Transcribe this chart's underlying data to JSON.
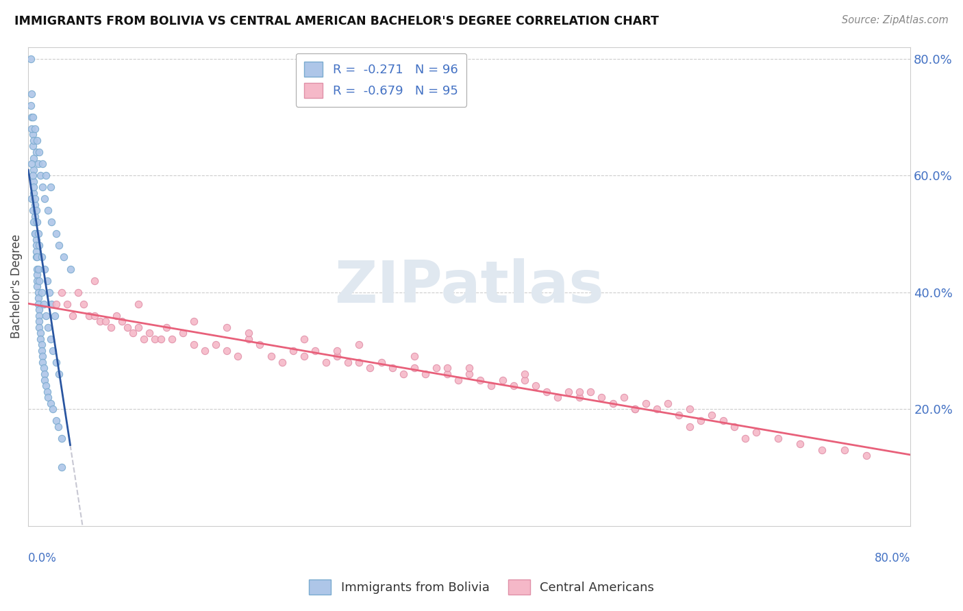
{
  "title": "IMMIGRANTS FROM BOLIVIA VS CENTRAL AMERICAN BACHELOR'S DEGREE CORRELATION CHART",
  "source": "Source: ZipAtlas.com",
  "ylabel": "Bachelor's Degree",
  "legend_label1": "Immigrants from Bolivia",
  "legend_label2": "Central Americans",
  "R1": -0.271,
  "N1": 96,
  "R2": -0.679,
  "N2": 95,
  "color_bolivia": "#aec6e8",
  "color_central": "#f5b8c8",
  "color_bolivia_line": "#2955a0",
  "color_central_line": "#e8607a",
  "color_text_blue": "#4472c4",
  "xlim": [
    0.0,
    0.8
  ],
  "ylim": [
    0.0,
    0.82
  ],
  "bolivia_x": [
    0.002,
    0.003,
    0.003,
    0.004,
    0.004,
    0.005,
    0.005,
    0.005,
    0.005,
    0.006,
    0.006,
    0.006,
    0.006,
    0.007,
    0.007,
    0.007,
    0.008,
    0.008,
    0.008,
    0.008,
    0.009,
    0.009,
    0.009,
    0.01,
    0.01,
    0.01,
    0.01,
    0.011,
    0.011,
    0.012,
    0.012,
    0.013,
    0.013,
    0.014,
    0.015,
    0.015,
    0.016,
    0.017,
    0.018,
    0.02,
    0.022,
    0.025,
    0.027,
    0.03,
    0.003,
    0.004,
    0.005,
    0.006,
    0.007,
    0.008,
    0.009,
    0.01,
    0.012,
    0.014,
    0.016,
    0.018,
    0.02,
    0.022,
    0.025,
    0.028,
    0.003,
    0.004,
    0.005,
    0.006,
    0.007,
    0.008,
    0.009,
    0.01,
    0.012,
    0.015,
    0.017,
    0.019,
    0.021,
    0.024,
    0.003,
    0.005,
    0.007,
    0.009,
    0.011,
    0.013,
    0.015,
    0.018,
    0.021,
    0.025,
    0.028,
    0.032,
    0.038,
    0.002,
    0.004,
    0.006,
    0.008,
    0.01,
    0.013,
    0.016,
    0.02,
    0.03
  ],
  "bolivia_y": [
    0.8,
    0.74,
    0.7,
    0.67,
    0.65,
    0.63,
    0.61,
    0.59,
    0.57,
    0.55,
    0.53,
    0.52,
    0.5,
    0.49,
    0.47,
    0.46,
    0.44,
    0.43,
    0.42,
    0.41,
    0.4,
    0.39,
    0.38,
    0.37,
    0.36,
    0.35,
    0.34,
    0.33,
    0.32,
    0.31,
    0.3,
    0.29,
    0.28,
    0.27,
    0.26,
    0.25,
    0.24,
    0.23,
    0.22,
    0.21,
    0.2,
    0.18,
    0.17,
    0.15,
    0.56,
    0.54,
    0.52,
    0.5,
    0.48,
    0.46,
    0.44,
    0.42,
    0.4,
    0.38,
    0.36,
    0.34,
    0.32,
    0.3,
    0.28,
    0.26,
    0.62,
    0.6,
    0.58,
    0.56,
    0.54,
    0.52,
    0.5,
    0.48,
    0.46,
    0.44,
    0.42,
    0.4,
    0.38,
    0.36,
    0.68,
    0.66,
    0.64,
    0.62,
    0.6,
    0.58,
    0.56,
    0.54,
    0.52,
    0.5,
    0.48,
    0.46,
    0.44,
    0.72,
    0.7,
    0.68,
    0.66,
    0.64,
    0.62,
    0.6,
    0.58,
    0.1
  ],
  "central_x": [
    0.025,
    0.03,
    0.035,
    0.04,
    0.045,
    0.05,
    0.055,
    0.06,
    0.065,
    0.07,
    0.075,
    0.08,
    0.085,
    0.09,
    0.095,
    0.1,
    0.105,
    0.11,
    0.115,
    0.12,
    0.125,
    0.13,
    0.14,
    0.15,
    0.16,
    0.17,
    0.18,
    0.19,
    0.2,
    0.21,
    0.22,
    0.23,
    0.24,
    0.25,
    0.26,
    0.27,
    0.28,
    0.29,
    0.3,
    0.31,
    0.32,
    0.33,
    0.34,
    0.35,
    0.36,
    0.37,
    0.38,
    0.39,
    0.4,
    0.41,
    0.42,
    0.43,
    0.44,
    0.45,
    0.46,
    0.47,
    0.48,
    0.49,
    0.5,
    0.51,
    0.52,
    0.53,
    0.54,
    0.55,
    0.56,
    0.57,
    0.58,
    0.59,
    0.6,
    0.61,
    0.62,
    0.63,
    0.64,
    0.65,
    0.66,
    0.68,
    0.7,
    0.72,
    0.74,
    0.76,
    0.06,
    0.1,
    0.15,
    0.2,
    0.25,
    0.3,
    0.35,
    0.4,
    0.45,
    0.5,
    0.55,
    0.6,
    0.18,
    0.28,
    0.38
  ],
  "central_y": [
    0.38,
    0.4,
    0.38,
    0.36,
    0.4,
    0.38,
    0.36,
    0.36,
    0.35,
    0.35,
    0.34,
    0.36,
    0.35,
    0.34,
    0.33,
    0.34,
    0.32,
    0.33,
    0.32,
    0.32,
    0.34,
    0.32,
    0.33,
    0.31,
    0.3,
    0.31,
    0.3,
    0.29,
    0.32,
    0.31,
    0.29,
    0.28,
    0.3,
    0.29,
    0.3,
    0.28,
    0.29,
    0.28,
    0.28,
    0.27,
    0.28,
    0.27,
    0.26,
    0.27,
    0.26,
    0.27,
    0.26,
    0.25,
    0.26,
    0.25,
    0.24,
    0.25,
    0.24,
    0.25,
    0.24,
    0.23,
    0.22,
    0.23,
    0.22,
    0.23,
    0.22,
    0.21,
    0.22,
    0.2,
    0.21,
    0.2,
    0.21,
    0.19,
    0.2,
    0.18,
    0.19,
    0.18,
    0.17,
    0.15,
    0.16,
    0.15,
    0.14,
    0.13,
    0.13,
    0.12,
    0.42,
    0.38,
    0.35,
    0.33,
    0.32,
    0.31,
    0.29,
    0.27,
    0.26,
    0.23,
    0.2,
    0.17,
    0.34,
    0.3,
    0.27
  ]
}
